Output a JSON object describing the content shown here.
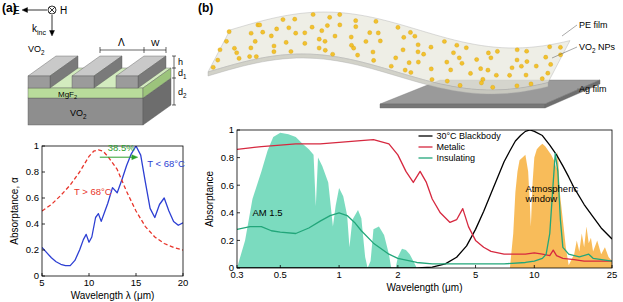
{
  "diagrams": {
    "a": {
      "panel_label": "(a)",
      "field": {
        "e": "E",
        "h": "H",
        "k": {
          "text": "k",
          "sub": "inc"
        }
      },
      "dims": {
        "period": "Λ",
        "width": "W",
        "h": "h",
        "d1": {
          "text": "d",
          "sub": "1"
        },
        "d2": {
          "text": "d",
          "sub": "2"
        }
      },
      "layers": {
        "grating": {
          "text": "VO",
          "sub": "2"
        },
        "spacer": {
          "text": "MgF",
          "sub": "2"
        },
        "substrate": {
          "text": "VO",
          "sub": "2"
        }
      }
    },
    "b": {
      "panel_label": "(b)",
      "labels": [
        {
          "text": "PE film"
        },
        {
          "text": "VO",
          "sub": "2",
          "tail": " NPs"
        },
        {
          "text": "Ag film"
        }
      ]
    }
  },
  "chart_data": [
    {
      "type": "line",
      "x_label": "Wavelength λ (μm)",
      "y_label": "Absorptance, α",
      "xlim": [
        5,
        20
      ],
      "ylim": [
        0,
        1
      ],
      "xticks": [
        5,
        10,
        15,
        20
      ],
      "yticks": [
        0,
        0.2,
        0.4,
        0.6,
        0.8,
        1
      ],
      "grid": false,
      "series": [
        {
          "color": "#2d3fd3",
          "line_style": "solid",
          "x": [
            5,
            5.5,
            6,
            6.5,
            7,
            7.5,
            8,
            8.5,
            9,
            9.4,
            9.7,
            10,
            10.3,
            10.7,
            11,
            11.3,
            11.7,
            12,
            12.5,
            13,
            13.5,
            14,
            14.5,
            15,
            15.5,
            16,
            16.5,
            17,
            17.5,
            18,
            18.5,
            19,
            19.5,
            20
          ],
          "values": [
            0.22,
            0.18,
            0.14,
            0.11,
            0.09,
            0.08,
            0.08,
            0.12,
            0.2,
            0.28,
            0.32,
            0.26,
            0.3,
            0.45,
            0.48,
            0.42,
            0.5,
            0.56,
            0.68,
            0.64,
            0.74,
            0.85,
            0.94,
            1.0,
            0.93,
            0.72,
            0.52,
            0.45,
            0.55,
            0.6,
            0.5,
            0.42,
            0.39,
            0.41
          ]
        },
        {
          "color": "#e8352b",
          "line_style": "dashed",
          "x": [
            5,
            6,
            7,
            8,
            9,
            10,
            10.5,
            11,
            11.5,
            12,
            13,
            14,
            15,
            16,
            17,
            18,
            19,
            20
          ],
          "values": [
            0.5,
            0.55,
            0.62,
            0.7,
            0.8,
            0.92,
            0.96,
            0.97,
            0.96,
            0.92,
            0.82,
            0.65,
            0.5,
            0.38,
            0.3,
            0.25,
            0.22,
            0.2
          ]
        }
      ],
      "annotations": [
        {
          "text": "38.5%",
          "x": 12.0,
          "y": 0.96,
          "color": "#2ca02c"
        },
        {
          "text": "T < 68°C",
          "x": 16.2,
          "y": 0.84,
          "color": "#2d3fd3"
        },
        {
          "text": "T > 68°C",
          "x": 8.4,
          "y": 0.62,
          "color": "#e8352b"
        }
      ]
    },
    {
      "type": "line",
      "x_label": "Wavelength (μm)",
      "y_label": "Absorptance",
      "log": "x",
      "legend": "upper center",
      "xlim": [
        0.3,
        25
      ],
      "ylim": [
        0,
        1
      ],
      "xticks": [
        0.3,
        0.5,
        1,
        2,
        5,
        10,
        25
      ],
      "yticks": [
        0,
        0.2,
        0.4,
        0.6,
        0.8,
        1
      ],
      "grid": false,
      "series": [
        {
          "type": "area",
          "color": "#4fcfa9",
          "x": [
            0.3,
            0.33,
            0.36,
            0.4,
            0.43,
            0.46,
            0.5,
            0.55,
            0.6,
            0.65,
            0.7,
            0.74,
            0.76,
            0.78,
            0.82,
            0.88,
            0.93,
            0.96,
            1.0,
            1.05,
            1.1,
            1.13,
            1.17,
            1.25,
            1.3,
            1.36,
            1.4,
            1.45,
            1.5,
            1.6,
            1.7,
            1.8,
            1.85,
            1.95,
            2.0,
            2.1,
            2.2,
            2.3,
            2.4,
            2.5
          ],
          "values": [
            0,
            0.2,
            0.5,
            0.7,
            0.85,
            0.95,
            0.98,
            0.97,
            0.95,
            0.9,
            0.86,
            0.82,
            0.45,
            0.8,
            0.74,
            0.62,
            0.3,
            0.45,
            0.58,
            0.52,
            0.38,
            0.15,
            0.35,
            0.42,
            0.36,
            0.08,
            0,
            0.05,
            0.28,
            0.3,
            0.24,
            0.1,
            0,
            0,
            0.08,
            0.14,
            0.13,
            0.1,
            0.05,
            0
          ]
        },
        {
          "type": "area",
          "color": "#f5a623",
          "x": [
            7.5,
            7.8,
            8,
            8.2,
            8.4,
            8.7,
            9,
            9.3,
            9.5,
            9.6,
            9.8,
            10,
            10.3,
            10.6,
            11,
            11.4,
            11.8,
            12.2,
            12.6,
            13,
            13.2,
            13.5,
            14,
            14.5,
            15,
            16,
            16.5,
            17,
            17.5,
            18,
            18.5,
            19,
            19.5,
            20,
            21,
            22,
            23,
            24,
            25
          ],
          "values": [
            0,
            0.25,
            0.55,
            0.7,
            0.78,
            0.8,
            0.82,
            0.7,
            0.45,
            0.3,
            0.62,
            0.8,
            0.86,
            0.88,
            0.9,
            0.88,
            0.85,
            0.82,
            0.78,
            0.72,
            0.85,
            0.55,
            0.35,
            0.15,
            0.02,
            0.1,
            0.2,
            0.12,
            0.25,
            0.15,
            0.3,
            0.18,
            0.22,
            0.12,
            0.2,
            0.1,
            0.15,
            0.08,
            0.05
          ]
        },
        {
          "name": "30°C Blackbody",
          "type": "line",
          "color": "#000000",
          "line_style": "solid",
          "x": [
            0.3,
            2.5,
            3,
            3.5,
            4,
            4.5,
            5,
            5.5,
            6,
            6.5,
            7,
            7.5,
            8,
            8.5,
            9,
            9.5,
            10,
            11,
            12,
            13,
            14,
            15,
            16,
            18,
            20,
            22,
            25
          ],
          "values": [
            0,
            0,
            0.006,
            0.03,
            0.078,
            0.16,
            0.28,
            0.41,
            0.54,
            0.66,
            0.77,
            0.85,
            0.92,
            0.96,
            0.99,
            1.0,
            0.99,
            0.96,
            0.89,
            0.82,
            0.74,
            0.66,
            0.58,
            0.46,
            0.37,
            0.29,
            0.21
          ]
        },
        {
          "name": "Metalic",
          "type": "line",
          "color": "#d6283f",
          "line_style": "solid",
          "x": [
            0.3,
            0.35,
            0.4,
            0.5,
            0.6,
            0.7,
            0.8,
            1,
            1.2,
            1.5,
            1.8,
            2,
            2.2,
            2.4,
            2.6,
            2.8,
            3,
            3.3,
            3.7,
            4,
            4.3,
            4.6,
            5,
            5.5,
            6,
            7,
            8,
            9,
            10,
            11,
            12,
            12.5,
            13,
            14,
            16,
            18,
            20,
            25
          ],
          "values": [
            0.86,
            0.87,
            0.88,
            0.89,
            0.9,
            0.9,
            0.9,
            0.91,
            0.92,
            0.93,
            0.9,
            0.82,
            0.7,
            0.62,
            0.7,
            0.62,
            0.5,
            0.4,
            0.33,
            0.35,
            0.43,
            0.3,
            0.2,
            0.15,
            0.12,
            0.1,
            0.1,
            0.1,
            0.11,
            0.1,
            0.09,
            0.13,
            0.09,
            0.07,
            0.06,
            0.05,
            0.05,
            0.05
          ]
        },
        {
          "name": "Insulating",
          "type": "line",
          "color": "#22a67a",
          "line_style": "solid",
          "x": [
            0.3,
            0.35,
            0.4,
            0.45,
            0.5,
            0.6,
            0.7,
            0.8,
            0.9,
            1,
            1.1,
            1.2,
            1.3,
            1.5,
            1.8,
            2,
            2.5,
            3,
            4,
            5,
            7,
            9,
            10,
            11,
            11.5,
            12,
            12.4,
            12.8,
            13.2,
            13.6,
            14,
            15,
            17,
            19,
            20,
            25
          ],
          "values": [
            0.28,
            0.3,
            0.3,
            0.27,
            0.26,
            0.25,
            0.29,
            0.34,
            0.38,
            0.4,
            0.38,
            0.33,
            0.27,
            0.18,
            0.1,
            0.07,
            0.04,
            0.03,
            0.03,
            0.03,
            0.03,
            0.04,
            0.05,
            0.07,
            0.1,
            0.25,
            0.55,
            0.83,
            0.7,
            0.35,
            0.15,
            0.1,
            0.08,
            0.1,
            0.07,
            0.05
          ]
        }
      ],
      "annotations": [
        {
          "text": "AM 1.5",
          "x": 0.36,
          "y": 0.38,
          "color": "#000000"
        },
        {
          "text": "Atmospheric window",
          "x": 9,
          "y": 0.55,
          "color": "#000000"
        }
      ]
    }
  ]
}
